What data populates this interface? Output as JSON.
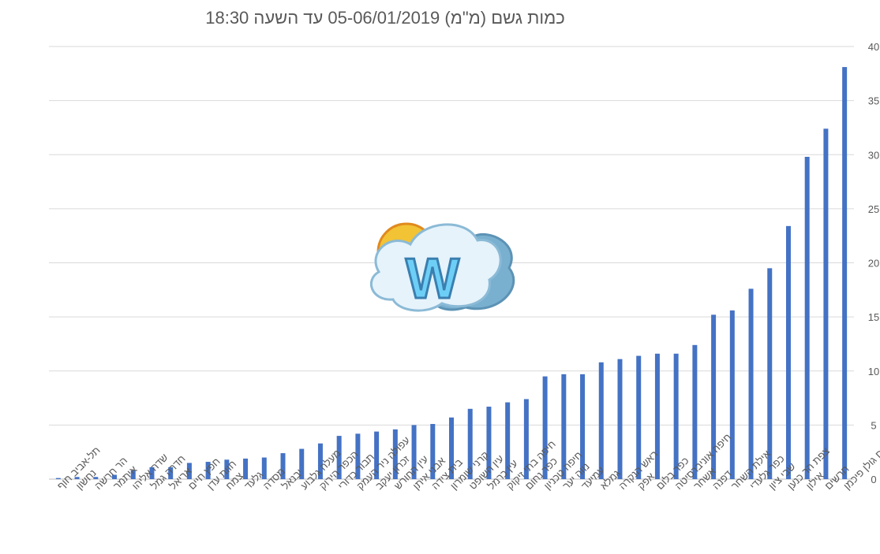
{
  "chart_data": {
    "type": "bar",
    "title": "כמות גשם (מ\"מ) 05-06/01/2019 עד השעה 18:30",
    "xlabel": "",
    "ylabel": "",
    "ylim": [
      0,
      40
    ],
    "y_ticks": [
      0,
      5,
      10,
      15,
      20,
      25,
      30,
      35,
      40
    ],
    "y_axis_side": "right",
    "grid": true,
    "legend": "none",
    "bar_color": "#4472c4",
    "categories": [
      "תל-אביב חוף",
      "נחשון",
      "הר חרשה",
      "איתמר",
      "שדה אליהו",
      "חדרה גמל",
      "אריאל",
      "חפץ חיים",
      "חוות עדן",
      "צמח",
      "גלעד",
      "מסדה",
      "יבנאל",
      "מעלה גלבוע",
      "הכפר הירוק",
      "תבור כדורי",
      "עפולה ניר העמק",
      "זכרון יעקב",
      "עין החורש",
      "אבני איתן",
      "בית צידה",
      "קרני שומרון",
      "עין השופט",
      "עין כרמל",
      "חיפה בתי זיקוק",
      "כפר נחום",
      "חיפה טכניון",
      "נווה יער",
      "עמיעד",
      "גמלא",
      "ראש הנקרה",
      "אפק",
      "כפר בלום",
      "חיפה אוניברסיטה",
      "אשחר",
      "דפנה",
      "אילת השחר",
      "כפר גלעדי",
      "שבי ציון",
      "צפת הר כנען",
      "אילון",
      "חרשים",
      "מרום גולן פיכמן"
    ],
    "values": [
      0.1,
      0.2,
      0.2,
      0.4,
      0.8,
      1.1,
      1.1,
      1.5,
      1.6,
      1.8,
      1.9,
      2.0,
      2.4,
      2.8,
      3.3,
      4.0,
      4.2,
      4.4,
      4.6,
      5.0,
      5.1,
      5.7,
      6.5,
      6.7,
      7.1,
      7.4,
      9.5,
      9.7,
      9.7,
      10.8,
      11.1,
      11.4,
      11.6,
      11.6,
      12.4,
      15.2,
      15.6,
      17.6,
      19.5,
      23.4,
      29.8,
      32.4,
      38.1
    ]
  },
  "watermark": {
    "icon": "weather-logo-icon",
    "letter": "W"
  }
}
